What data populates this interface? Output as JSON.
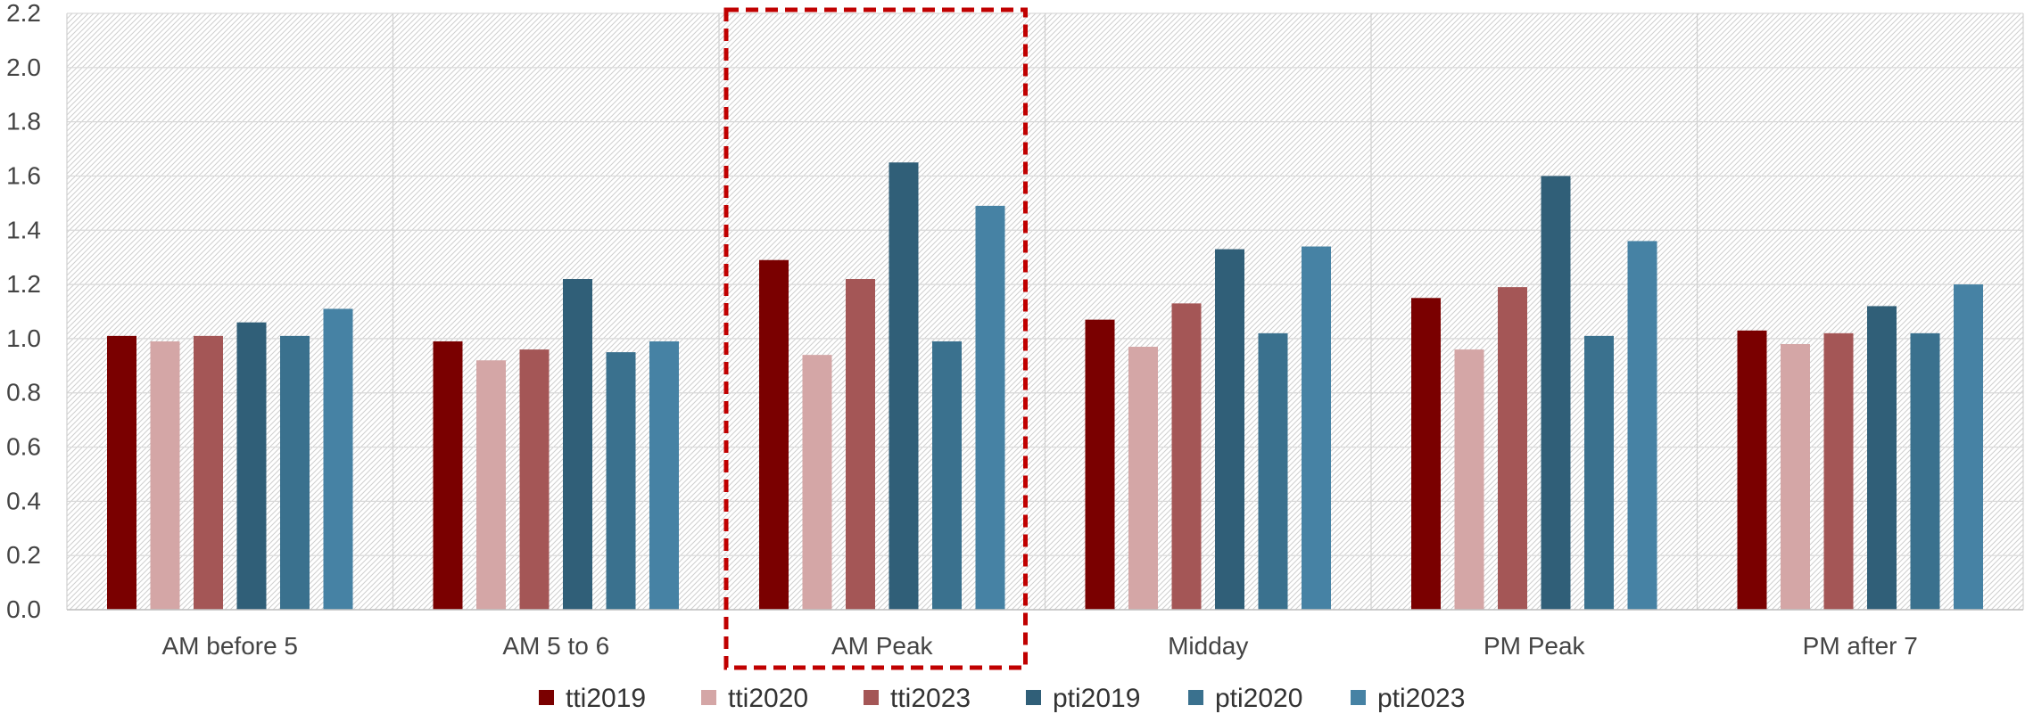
{
  "chart_data": {
    "type": "bar",
    "categories": [
      "AM before 5",
      "AM 5 to 6",
      "AM Peak",
      "Midday",
      "PM Peak",
      "PM after 7"
    ],
    "series": [
      {
        "name": "tti2019",
        "color": "#7a0000",
        "values": [
          1.01,
          0.99,
          1.29,
          1.07,
          1.15,
          1.03
        ]
      },
      {
        "name": "tti2020",
        "color": "#d4a6a6",
        "values": [
          0.99,
          0.92,
          0.94,
          0.97,
          0.96,
          0.98
        ]
      },
      {
        "name": "tti2023",
        "color": "#a45656",
        "values": [
          1.01,
          0.96,
          1.22,
          1.13,
          1.19,
          1.02
        ]
      },
      {
        "name": "pti2019",
        "color": "#305f78",
        "values": [
          1.06,
          1.22,
          1.65,
          1.33,
          1.6,
          1.12
        ]
      },
      {
        "name": "pti2020",
        "color": "#3a718e",
        "values": [
          1.01,
          0.95,
          0.99,
          1.02,
          1.01,
          1.02
        ]
      },
      {
        "name": "pti2023",
        "color": "#4682a4",
        "values": [
          1.11,
          0.99,
          1.49,
          1.34,
          1.36,
          1.2
        ]
      }
    ],
    "ylim": [
      0,
      2.2
    ],
    "yticks": [
      "0.0",
      "0.2",
      "0.4",
      "0.6",
      "0.8",
      "1.0",
      "1.2",
      "1.4",
      "1.6",
      "1.8",
      "2.0",
      "2.2"
    ],
    "grid": true,
    "legend_position": "bottom",
    "highlight": {
      "category": "AM Peak",
      "style": "dashed-box",
      "color": "#c00000"
    }
  }
}
